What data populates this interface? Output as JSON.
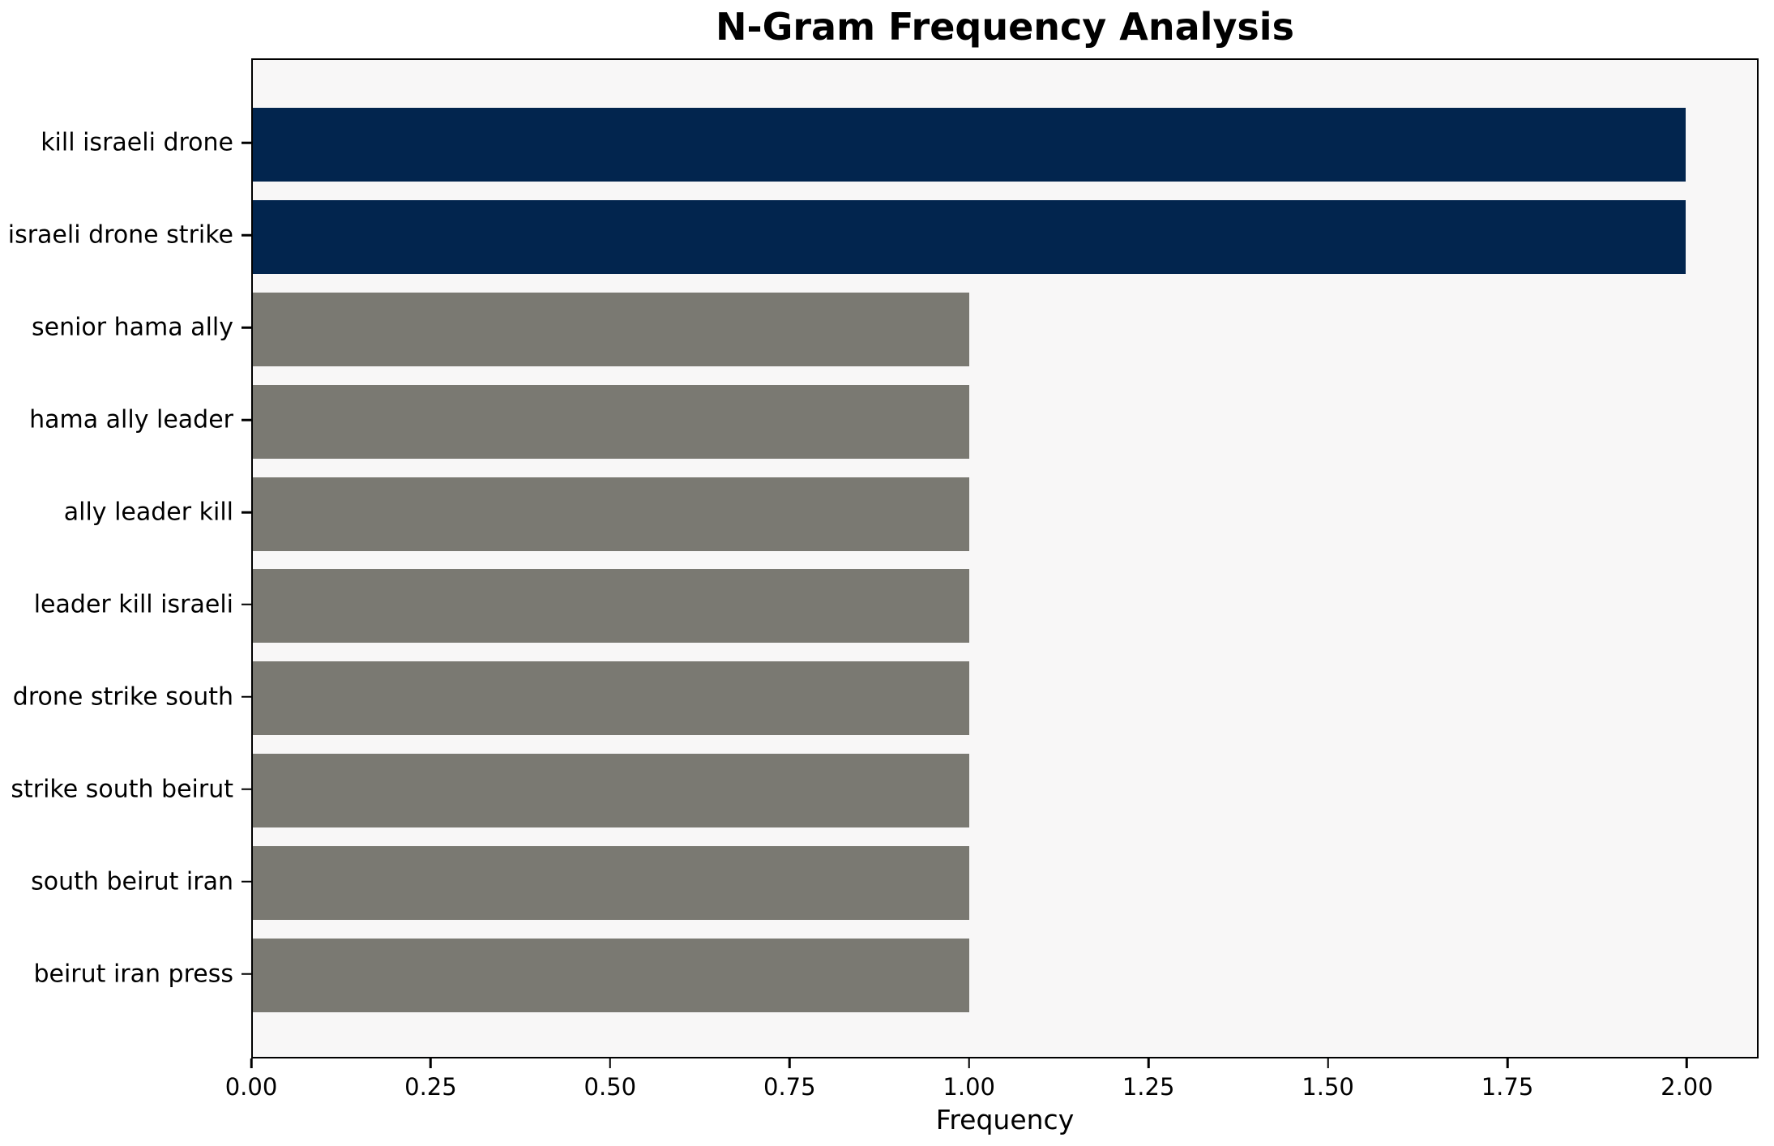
{
  "title": "N-Gram Frequency Analysis",
  "chart_data": {
    "type": "bar",
    "orientation": "horizontal",
    "title": "N-Gram Frequency Analysis",
    "xlabel": "Frequency",
    "ylabel": "",
    "categories": [
      "kill israeli drone",
      "israeli drone strike",
      "senior hama ally",
      "hama ally leader",
      "ally leader kill",
      "leader kill israeli",
      "drone strike south",
      "strike south beirut",
      "south beirut iran",
      "beirut iran press"
    ],
    "values": [
      2,
      2,
      1,
      1,
      1,
      1,
      1,
      1,
      1,
      1
    ],
    "bar_colors": [
      "#02254e",
      "#02254e",
      "#7a7972",
      "#7a7972",
      "#7a7972",
      "#7a7972",
      "#7a7972",
      "#7a7972",
      "#7a7972",
      "#7a7972"
    ],
    "xlim": [
      0,
      2.1
    ],
    "xticks": [
      "0.00",
      "0.25",
      "0.50",
      "0.75",
      "1.00",
      "1.25",
      "1.50",
      "1.75",
      "2.00"
    ],
    "xtick_values": [
      0,
      0.25,
      0.5,
      0.75,
      1.0,
      1.25,
      1.5,
      1.75,
      2.0
    ],
    "colors": {
      "highlight": "#02254e",
      "default": "#7a7972",
      "plot_background": "#f8f7f7",
      "spine": "#000000"
    },
    "grid": false,
    "legend_position": "none"
  }
}
